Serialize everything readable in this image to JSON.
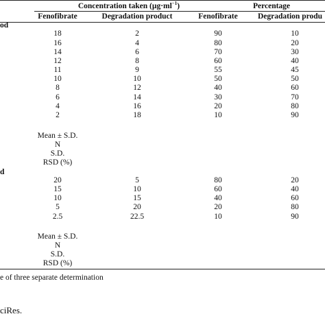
{
  "headers": {
    "concentration_taken": "Concentration taken (µg·ml",
    "concentration_sup": "−1",
    "concentration_close": ")",
    "percentage": "Percentage",
    "sub": [
      "Fenofibrate",
      "Degradation product",
      "Fenofibrate",
      "Degradation produ"
    ]
  },
  "method_labels": [
    "od",
    "d"
  ],
  "group1_rows": [
    [
      "18",
      "2",
      "90",
      "10"
    ],
    [
      "16",
      "4",
      "80",
      "20"
    ],
    [
      "14",
      "6",
      "70",
      "30"
    ],
    [
      "12",
      "8",
      "60",
      "40"
    ],
    [
      "11",
      "9",
      "55",
      "45"
    ],
    [
      "10",
      "10",
      "50",
      "50"
    ],
    [
      "8",
      "12",
      "40",
      "60"
    ],
    [
      "6",
      "14",
      "30",
      "70"
    ],
    [
      "4",
      "16",
      "20",
      "80"
    ],
    [
      "2",
      "18",
      "10",
      "90"
    ]
  ],
  "group2_rows": [
    [
      "20",
      "5",
      "80",
      "20"
    ],
    [
      "15",
      "10",
      "60",
      "40"
    ],
    [
      "10",
      "15",
      "40",
      "60"
    ],
    [
      "5",
      "20",
      "20",
      "80"
    ],
    [
      "2.5",
      "22.5",
      "10",
      "90"
    ]
  ],
  "stats_labels": [
    "Mean ± S.D.",
    "N",
    "S.D.",
    "RSD (%)"
  ],
  "footnote": "e of three separate determination",
  "source": "ciRes."
}
